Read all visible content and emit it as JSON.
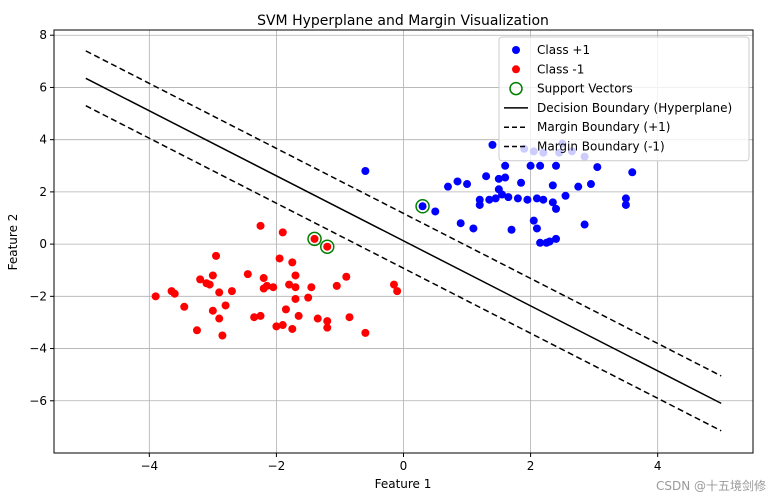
{
  "chart_data": {
    "type": "scatter",
    "title": "SVM Hyperplane and Margin Visualization",
    "xlabel": "Feature 1",
    "ylabel": "Feature 2",
    "xlim": [
      -5.5,
      5.5
    ],
    "ylim": [
      -8.0,
      8.2
    ],
    "xticks": [
      -4,
      -2,
      0,
      2,
      4
    ],
    "yticks": [
      -6,
      -4,
      -2,
      0,
      2,
      4,
      6,
      8
    ],
    "grid": true,
    "legend_position": "top-right",
    "series": [
      {
        "name": "Class +1",
        "kind": "points",
        "color": "#0000ff",
        "points": [
          [
            -0.6,
            2.8
          ],
          [
            0.3,
            1.45
          ],
          [
            0.5,
            1.25
          ],
          [
            0.7,
            2.2
          ],
          [
            0.85,
            2.4
          ],
          [
            0.9,
            0.8
          ],
          [
            1.0,
            2.3
          ],
          [
            1.1,
            0.6
          ],
          [
            1.2,
            1.5
          ],
          [
            1.2,
            1.7
          ],
          [
            1.3,
            2.6
          ],
          [
            1.35,
            1.7
          ],
          [
            1.4,
            3.8
          ],
          [
            1.45,
            1.75
          ],
          [
            1.5,
            2.1
          ],
          [
            1.5,
            2.5
          ],
          [
            1.55,
            1.9
          ],
          [
            1.6,
            2.55
          ],
          [
            1.6,
            3.0
          ],
          [
            1.65,
            1.8
          ],
          [
            1.7,
            0.55
          ],
          [
            1.8,
            1.75
          ],
          [
            1.85,
            2.35
          ],
          [
            1.9,
            3.65
          ],
          [
            1.95,
            1.7
          ],
          [
            2.0,
            3.0
          ],
          [
            2.05,
            0.9
          ],
          [
            2.05,
            3.55
          ],
          [
            2.1,
            1.75
          ],
          [
            2.1,
            0.6
          ],
          [
            2.15,
            3.0
          ],
          [
            2.15,
            0.05
          ],
          [
            2.2,
            1.7
          ],
          [
            2.2,
            3.5
          ],
          [
            2.25,
            0.05
          ],
          [
            2.3,
            0.1
          ],
          [
            2.35,
            2.25
          ],
          [
            2.35,
            1.6
          ],
          [
            2.4,
            0.2
          ],
          [
            2.4,
            1.35
          ],
          [
            2.4,
            3.0
          ],
          [
            2.45,
            3.5
          ],
          [
            2.5,
            3.85
          ],
          [
            2.55,
            1.85
          ],
          [
            2.65,
            3.55
          ],
          [
            2.75,
            2.2
          ],
          [
            2.85,
            0.75
          ],
          [
            2.85,
            3.35
          ],
          [
            2.95,
            2.3
          ],
          [
            3.05,
            2.95
          ],
          [
            3.5,
            1.75
          ],
          [
            3.5,
            1.5
          ],
          [
            3.6,
            2.75
          ]
        ]
      },
      {
        "name": "Class -1",
        "kind": "points",
        "color": "#ff0000",
        "points": [
          [
            -3.9,
            -2.0
          ],
          [
            -3.65,
            -1.8
          ],
          [
            -3.6,
            -1.9
          ],
          [
            -3.45,
            -2.4
          ],
          [
            -3.25,
            -3.3
          ],
          [
            -3.2,
            -1.35
          ],
          [
            -3.1,
            -1.5
          ],
          [
            -3.05,
            -1.55
          ],
          [
            -3.0,
            -1.2
          ],
          [
            -3.0,
            -2.55
          ],
          [
            -2.95,
            -0.45
          ],
          [
            -2.9,
            -1.85
          ],
          [
            -2.9,
            -2.85
          ],
          [
            -2.85,
            -3.5
          ],
          [
            -2.8,
            -2.35
          ],
          [
            -2.7,
            -1.8
          ],
          [
            -2.45,
            -1.15
          ],
          [
            -2.35,
            -2.8
          ],
          [
            -2.25,
            0.7
          ],
          [
            -2.25,
            -2.75
          ],
          [
            -2.2,
            -1.3
          ],
          [
            -2.2,
            -1.7
          ],
          [
            -2.15,
            -1.6
          ],
          [
            -2.05,
            -1.65
          ],
          [
            -2.0,
            -3.15
          ],
          [
            -1.95,
            -0.55
          ],
          [
            -1.9,
            0.45
          ],
          [
            -1.9,
            -3.1
          ],
          [
            -1.85,
            -2.5
          ],
          [
            -1.8,
            -1.55
          ],
          [
            -1.75,
            -3.25
          ],
          [
            -1.75,
            -0.7
          ],
          [
            -1.7,
            -1.65
          ],
          [
            -1.7,
            -2.1
          ],
          [
            -1.7,
            -1.2
          ],
          [
            -1.65,
            -2.75
          ],
          [
            -1.5,
            -2.05
          ],
          [
            -1.45,
            -1.65
          ],
          [
            -1.4,
            0.2
          ],
          [
            -1.35,
            -2.85
          ],
          [
            -1.2,
            -3.2
          ],
          [
            -1.2,
            -2.95
          ],
          [
            -1.2,
            -0.1
          ],
          [
            -1.05,
            -1.6
          ],
          [
            -0.9,
            -1.25
          ],
          [
            -0.85,
            -2.8
          ],
          [
            -0.6,
            -3.4
          ],
          [
            -0.15,
            -1.55
          ],
          [
            -0.1,
            -1.8
          ]
        ]
      },
      {
        "name": "Support Vectors",
        "kind": "rings",
        "color": "#008000",
        "points": [
          [
            -1.4,
            0.2
          ],
          [
            -1.2,
            -0.1
          ],
          [
            0.3,
            1.45
          ]
        ]
      },
      {
        "name": "Decision Boundary (Hyperplane)",
        "kind": "line",
        "style": "solid",
        "color": "#000000",
        "x": [
          -5,
          5
        ],
        "y": [
          6.35,
          -6.1
        ]
      },
      {
        "name": "Margin Boundary (+1)",
        "kind": "line",
        "style": "dashed",
        "color": "#000000",
        "x": [
          -5,
          5
        ],
        "y": [
          5.3,
          -7.15
        ]
      },
      {
        "name": "Margin Boundary (-1)",
        "kind": "line",
        "style": "dashed",
        "color": "#000000",
        "x": [
          -5,
          5
        ],
        "y": [
          7.4,
          -5.05
        ]
      }
    ],
    "legend": [
      {
        "label": "Class +1",
        "marker": "dot",
        "color": "#0000ff"
      },
      {
        "label": "Class -1",
        "marker": "dot",
        "color": "#ff0000"
      },
      {
        "label": "Support Vectors",
        "marker": "ring",
        "color": "#008000"
      },
      {
        "label": "Decision Boundary (Hyperplane)",
        "marker": "solid-line",
        "color": "#000000"
      },
      {
        "label": "Margin Boundary (+1)",
        "marker": "dashed-line",
        "color": "#000000"
      },
      {
        "label": "Margin Boundary (-1)",
        "marker": "dashed-line",
        "color": "#000000"
      }
    ]
  },
  "watermark": "CSDN @十五境剑修"
}
